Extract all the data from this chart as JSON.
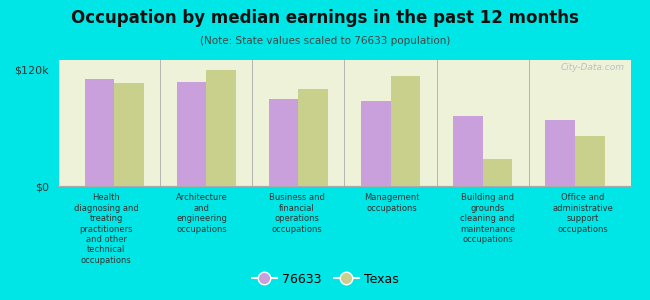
{
  "title": "Occupation by median earnings in the past 12 months",
  "subtitle": "(Note: State values scaled to 76633 population)",
  "background_color": "#00e5e5",
  "plot_bg_color": "#eef2d8",
  "bar_color_local": "#c9a0dc",
  "bar_color_state": "#c8d08c",
  "categories": [
    "Health\ndiagnosing and\ntreating\npractitioners\nand other\ntechnical\noccupations",
    "Architecture\nand\nengineering\noccupations",
    "Business and\nfinancial\noperations\noccupations",
    "Management\noccupations",
    "Building and\ngrounds\ncleaning and\nmaintenance\noccupations",
    "Office and\nadministrative\nsupport\noccupations"
  ],
  "values_local": [
    110000,
    107000,
    90000,
    88000,
    72000,
    68000
  ],
  "values_state": [
    106000,
    120000,
    100000,
    113000,
    28000,
    52000
  ],
  "ylim": [
    0,
    130000
  ],
  "yticks": [
    0,
    120000
  ],
  "ytick_labels": [
    "$0",
    "$120k"
  ],
  "legend_labels": [
    "76633",
    "Texas"
  ],
  "watermark": "City-Data.com"
}
